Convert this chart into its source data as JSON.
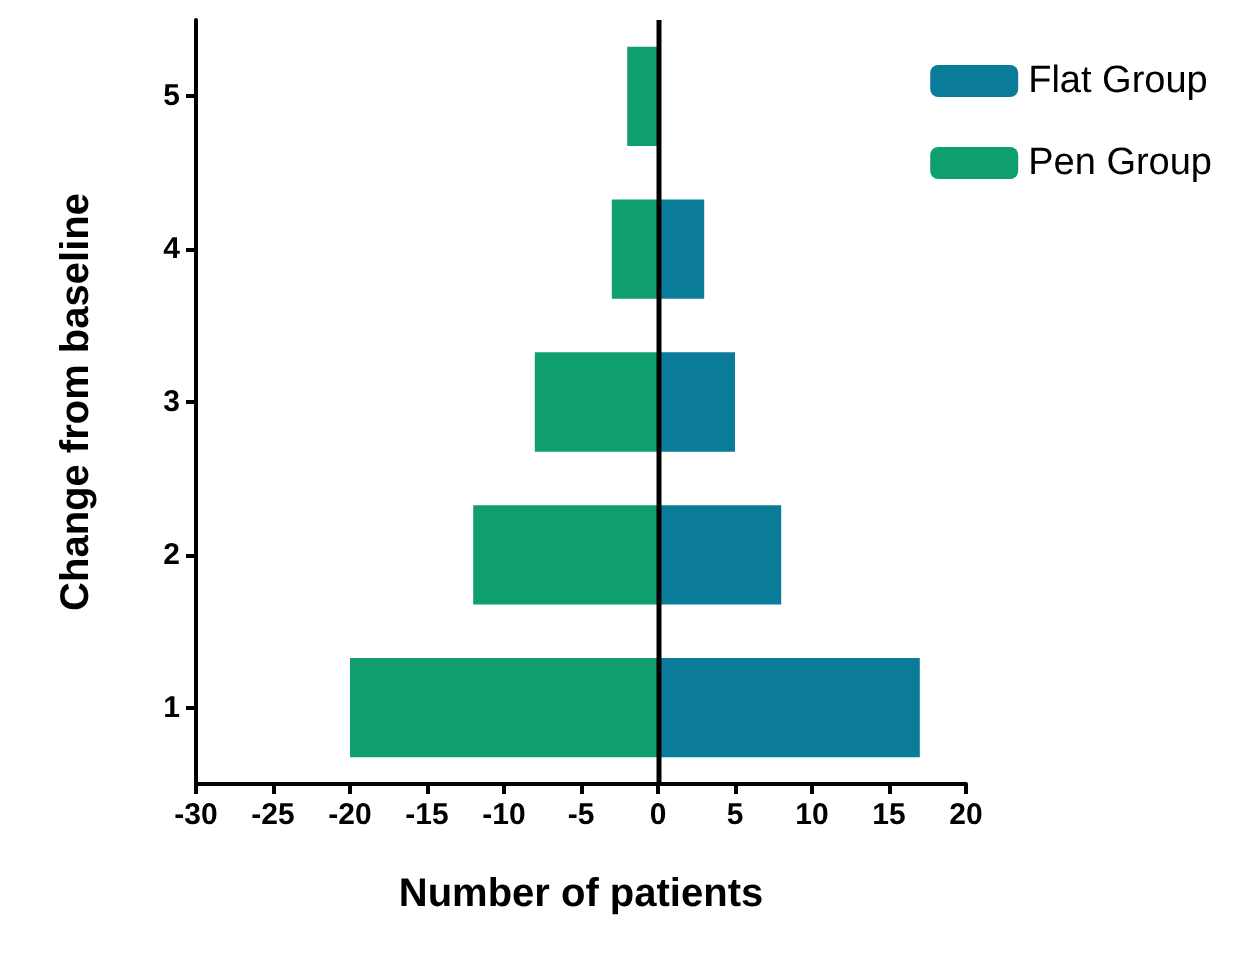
{
  "chart_data": {
    "type": "bar",
    "stacked": true,
    "orientation": "horizontal",
    "xlabel": "Number of patients",
    "ylabel": "Change from baseline",
    "categories": [
      "5",
      "4",
      "3",
      "2",
      "1"
    ],
    "series": [
      {
        "name": "Flat Group",
        "color": "#0a7b98",
        "values": [
          null,
          3,
          5,
          8,
          17
        ]
      },
      {
        "name": "Pen Group",
        "color": "#0f9e6e",
        "values": [
          -2,
          -3,
          -8,
          -12,
          -20
        ]
      }
    ],
    "xlim": [
      -30,
      20
    ],
    "xticks": [
      -30,
      -25,
      -20,
      -15,
      -10,
      -5,
      0,
      5,
      10,
      15,
      20
    ],
    "ref_lines": [
      {
        "axis": "x",
        "value": 0,
        "color": "#000000"
      }
    ],
    "grid": false,
    "legend": "top right"
  }
}
